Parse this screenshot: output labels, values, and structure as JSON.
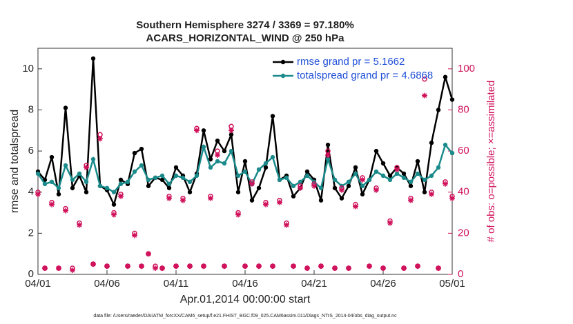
{
  "chart_data": {
    "type": "line",
    "title": "Southern Hemisphere 3274 / 3369 = 97.180%",
    "subtitle": "ACARS_HORIZONTAL_WIND @ 250 hPa",
    "x_label": "Apr.01,2014 00:00:00 start",
    "y_label": "rmse and totalspread",
    "y2_label": "# of obs: o=possible; ×=assimilated",
    "footnote": "data file: /Users/raeder/DAI/ATM_forcXX/CAM6_setup/f.e21.FHIST_BGC.f09_025.CAM6assim.011/Diags_NTrS_2014-04/obs_diag_output.nc",
    "x": [
      0,
      0.5,
      1,
      1.5,
      2,
      2.5,
      3,
      3.5,
      4,
      4.5,
      5,
      5.5,
      6,
      6.5,
      7,
      7.5,
      8,
      8.5,
      9,
      9.5,
      10,
      10.5,
      11,
      11.5,
      12,
      12.5,
      13,
      13.5,
      14,
      14.5,
      15,
      15.5,
      16,
      16.5,
      17,
      17.5,
      18,
      18.5,
      19,
      19.5,
      20,
      20.5,
      21,
      21.5,
      22,
      22.5,
      23,
      23.5,
      24,
      24.5,
      25,
      25.5,
      26,
      26.5,
      27,
      27.5,
      28,
      28.5,
      29,
      29.5,
      30
    ],
    "xlim": [
      0,
      30
    ],
    "xticks": [
      {
        "value": 0,
        "label": "04/01"
      },
      {
        "value": 5,
        "label": "04/06"
      },
      {
        "value": 10,
        "label": "04/11"
      },
      {
        "value": 15,
        "label": "04/16"
      },
      {
        "value": 20,
        "label": "04/21"
      },
      {
        "value": 25,
        "label": "04/26"
      },
      {
        "value": 30,
        "label": "05/01"
      }
    ],
    "ylim": [
      0,
      11
    ],
    "yticks": [
      0,
      2,
      4,
      6,
      8,
      10
    ],
    "y2lim": [
      0,
      110
    ],
    "y2ticks": [
      0,
      20,
      40,
      60,
      80,
      100
    ],
    "y2_color": "#d0105a",
    "legend_text_color": "#1f4fd8",
    "series": [
      {
        "name": "rmse grand pr = 5.1662",
        "color": "#000000",
        "marker": "dot",
        "values": [
          5.0,
          4.6,
          5.7,
          3.9,
          8.1,
          4.2,
          4.8,
          4.0,
          10.5,
          4.3,
          4.1,
          3.4,
          4.6,
          4.4,
          5.9,
          6.1,
          4.3,
          4.7,
          4.6,
          4.2,
          5.2,
          4.8,
          4.0,
          4.9,
          7.0,
          5.6,
          6.5,
          6.0,
          6.8,
          4.0,
          5.5,
          3.6,
          4.2,
          5.2,
          7.7,
          4.6,
          4.8,
          3.8,
          4.2,
          5.0,
          4.6,
          3.6,
          6.3,
          4.2,
          3.7,
          4.3,
          5.2,
          3.9,
          4.6,
          6.0,
          5.4,
          4.8,
          5.2,
          4.9,
          4.3,
          5.5,
          4.0,
          6.4,
          8.0,
          9.6,
          8.5
        ]
      },
      {
        "name": "totalspread grand pr = 4.6868",
        "color": "#1a8a8a",
        "marker": "dot",
        "values": [
          4.9,
          4.4,
          4.5,
          4.2,
          5.3,
          4.6,
          4.9,
          4.5,
          5.6,
          4.3,
          4.2,
          4.0,
          4.4,
          4.5,
          5.0,
          5.3,
          4.6,
          4.7,
          4.8,
          4.4,
          4.8,
          4.7,
          4.5,
          4.8,
          6.2,
          5.2,
          5.5,
          5.4,
          6.0,
          4.8,
          5.0,
          4.4,
          5.1,
          5.4,
          5.7,
          4.6,
          4.7,
          4.3,
          4.5,
          4.8,
          4.5,
          4.2,
          5.6,
          4.6,
          4.3,
          4.5,
          4.9,
          4.3,
          4.6,
          5.0,
          4.8,
          4.6,
          4.9,
          4.7,
          4.5,
          4.9,
          4.6,
          4.8,
          5.2,
          6.3,
          5.9
        ]
      },
      {
        "color": "#d0105a",
        "marker": "circle",
        "axis": "y2",
        "values": [
          40,
          3,
          35,
          3,
          32,
          3,
          25,
          53,
          5,
          68,
          4,
          30,
          39,
          4,
          20,
          4,
          10,
          4,
          3,
          38,
          4,
          37,
          4,
          71,
          4,
          38,
          60,
          4,
          72,
          30,
          4,
          45,
          4,
          35,
          4,
          36,
          25,
          4,
          43,
          3,
          44,
          4,
          60,
          3,
          42,
          3,
          34,
          47,
          4,
          42,
          3,
          26,
          52,
          3,
          37,
          4,
          95,
          40,
          3,
          45,
          38
        ]
      },
      {
        "color": "#d0105a",
        "marker": "asterisk",
        "axis": "y2",
        "values": [
          39,
          3,
          34,
          3,
          31,
          2,
          24,
          52,
          5,
          66,
          4,
          29,
          38,
          4,
          19,
          4,
          10,
          3,
          3,
          37,
          4,
          36,
          4,
          70,
          4,
          37,
          58,
          4,
          70,
          29,
          4,
          44,
          4,
          34,
          4,
          35,
          24,
          4,
          42,
          3,
          43,
          4,
          58,
          3,
          41,
          3,
          33,
          46,
          4,
          41,
          3,
          25,
          51,
          3,
          36,
          4,
          87,
          39,
          3,
          44,
          37
        ]
      }
    ]
  }
}
